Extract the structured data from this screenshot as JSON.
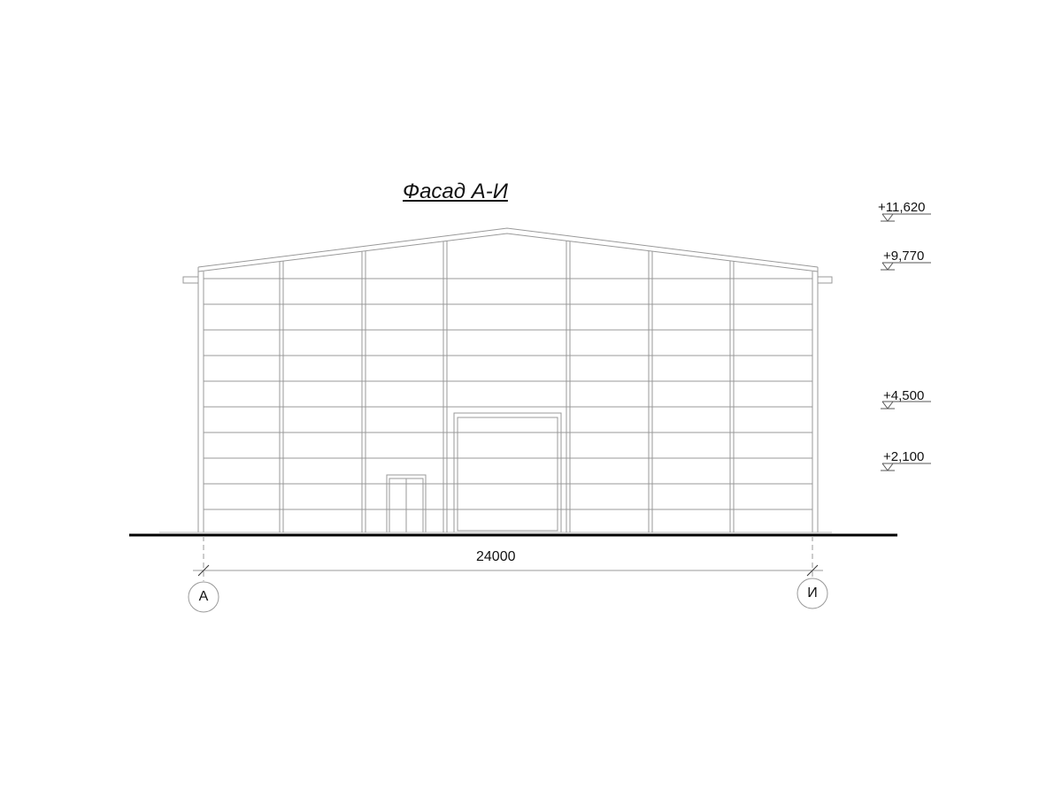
{
  "title": "Фасад А-И",
  "levels": [
    "+11,620",
    "+9,770",
    "+4,500",
    "+2,100"
  ],
  "dimension": "24000",
  "axes": [
    "А",
    "И"
  ]
}
